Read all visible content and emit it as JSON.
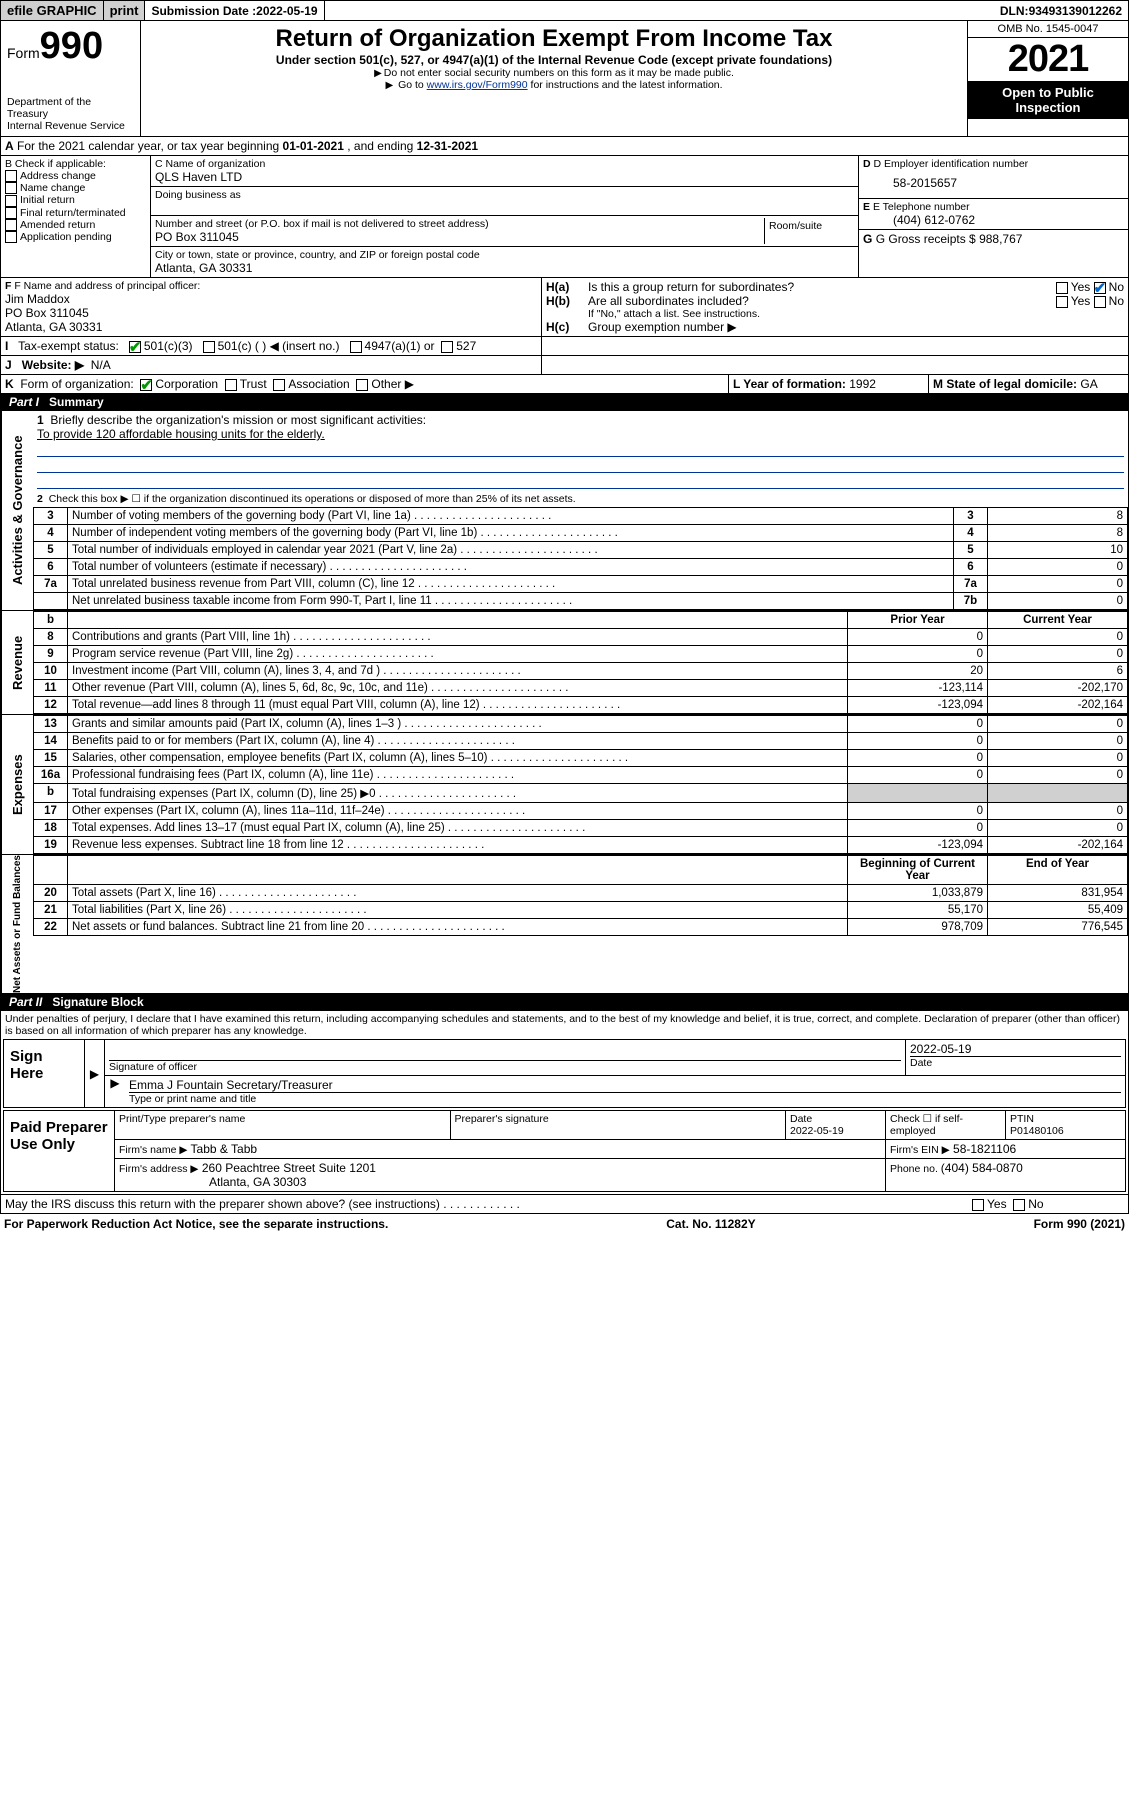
{
  "colors": {
    "link": "#003399",
    "checked": "#0066cc",
    "grey": "#d0d0d0"
  },
  "topbar": {
    "efile": "efile GRAPHIC",
    "print": "print",
    "sub_label": "Submission Date : ",
    "sub_date": "2022-05-19",
    "dln_label": "DLN: ",
    "dln": "93493139012262"
  },
  "header": {
    "form_word": "Form",
    "form_num": "990",
    "dept": "Department of the Treasury",
    "irs": "Internal Revenue Service",
    "title": "Return of Organization Exempt From Income Tax",
    "sub1": "Under section 501(c), 527, or 4947(a)(1) of the Internal Revenue Code (except private foundations)",
    "sub2": "Do not enter social security numbers on this form as it may be made public.",
    "sub3_pre": "Go to ",
    "sub3_link": "www.irs.gov/Form990",
    "sub3_post": " for instructions and the latest information.",
    "omb": "OMB No. 1545-0047",
    "year": "2021",
    "open": "Open to Public Inspection"
  },
  "A": {
    "line": "For the 2021 calendar year, or tax year beginning ",
    "begin": "01-01-2021",
    "mid": " , and ending ",
    "end": "12-31-2021",
    "prefix": "A"
  },
  "B": {
    "label": "B Check if applicable:",
    "opts": [
      "Address change",
      "Name change",
      "Initial return",
      "Final return/terminated",
      "Amended return",
      "Application pending"
    ]
  },
  "C": {
    "name_label": "C Name of organization",
    "name": "QLS Haven LTD",
    "dba_label": "Doing business as",
    "addr_label": "Number and street (or P.O. box if mail is not delivered to street address)",
    "room_label": "Room/suite",
    "addr": "PO Box 311045",
    "city_label": "City or town, state or province, country, and ZIP or foreign postal code",
    "city": "Atlanta, GA  30331"
  },
  "D": {
    "label": "D Employer identification number",
    "val": "58-2015657"
  },
  "E": {
    "label": "E Telephone number",
    "val": "(404) 612-0762"
  },
  "G": {
    "label": "G Gross receipts $ ",
    "val": "988,767"
  },
  "F": {
    "label": "F  Name and address of principal officer:",
    "name": "Jim Maddox",
    "addr1": "PO Box 311045",
    "addr2": "Atlanta, GA  30331"
  },
  "H": {
    "a": "Is this a group return for subordinates?",
    "b": "Are all subordinates included?",
    "note": "If \"No,\" attach a list. See instructions.",
    "c": "Group exemption number ▶",
    "yes": "Yes",
    "no": "No",
    "ha_label": "H(a)",
    "hb_label": "H(b)",
    "hc_label": "H(c)"
  },
  "I": {
    "label": "Tax-exempt status:",
    "prefix": "I",
    "c3": "501(c)(3)",
    "c": "501(c) (  ) ◀ (insert no.)",
    "s4947": "4947(a)(1) or",
    "s527": "527"
  },
  "J": {
    "prefix": "J",
    "label": "Website: ▶",
    "val": "N/A"
  },
  "K": {
    "prefix": "K",
    "label": "Form of organization:",
    "corp": "Corporation",
    "trust": "Trust",
    "assoc": "Association",
    "other": "Other ▶"
  },
  "L": {
    "label": "L Year of formation: ",
    "val": "1992"
  },
  "M": {
    "label": "M State of legal domicile: ",
    "val": "GA"
  },
  "part1": {
    "title": "Part I",
    "sub": "Summary"
  },
  "summary": {
    "q1": "Briefly describe the organization's mission or most significant activities:",
    "mission": "To provide 120 affordable housing units for the elderly.",
    "q2": "Check this box ▶ ☐  if the organization discontinued its operations or disposed of more than 25% of its net assets.",
    "rows_ag": [
      {
        "n": "3",
        "d": "Number of voting members of the governing body (Part VI, line 1a)",
        "rn": "3",
        "v": "8"
      },
      {
        "n": "4",
        "d": "Number of independent voting members of the governing body (Part VI, line 1b)",
        "rn": "4",
        "v": "8"
      },
      {
        "n": "5",
        "d": "Total number of individuals employed in calendar year 2021 (Part V, line 2a)",
        "rn": "5",
        "v": "10"
      },
      {
        "n": "6",
        "d": "Total number of volunteers (estimate if necessary)",
        "rn": "6",
        "v": "0"
      },
      {
        "n": "7a",
        "d": "Total unrelated business revenue from Part VIII, column (C), line 12",
        "rn": "7a",
        "v": "0"
      },
      {
        "n": "",
        "d": "Net unrelated business taxable income from Form 990-T, Part I, line 11",
        "rn": "7b",
        "v": "0"
      }
    ],
    "col_prior": "Prior Year",
    "col_curr": "Current Year",
    "n_b": "b",
    "rev": [
      {
        "n": "8",
        "d": "Contributions and grants (Part VIII, line 1h)",
        "p": "0",
        "c": "0"
      },
      {
        "n": "9",
        "d": "Program service revenue (Part VIII, line 2g)",
        "p": "0",
        "c": "0"
      },
      {
        "n": "10",
        "d": "Investment income (Part VIII, column (A), lines 3, 4, and 7d )",
        "p": "20",
        "c": "6"
      },
      {
        "n": "11",
        "d": "Other revenue (Part VIII, column (A), lines 5, 6d, 8c, 9c, 10c, and 11e)",
        "p": "-123,114",
        "c": "-202,170"
      },
      {
        "n": "12",
        "d": "Total revenue—add lines 8 through 11 (must equal Part VIII, column (A), line 12)",
        "p": "-123,094",
        "c": "-202,164"
      }
    ],
    "exp": [
      {
        "n": "13",
        "d": "Grants and similar amounts paid (Part IX, column (A), lines 1–3 )",
        "p": "0",
        "c": "0"
      },
      {
        "n": "14",
        "d": "Benefits paid to or for members (Part IX, column (A), line 4)",
        "p": "0",
        "c": "0"
      },
      {
        "n": "15",
        "d": "Salaries, other compensation, employee benefits (Part IX, column (A), lines 5–10)",
        "p": "0",
        "c": "0"
      },
      {
        "n": "16a",
        "d": "Professional fundraising fees (Part IX, column (A), line 11e)",
        "p": "0",
        "c": "0"
      },
      {
        "n": "b",
        "d": "Total fundraising expenses (Part IX, column (D), line 25) ▶0",
        "p": "",
        "c": "",
        "grey": true
      },
      {
        "n": "17",
        "d": "Other expenses (Part IX, column (A), lines 11a–11d, 11f–24e)",
        "p": "0",
        "c": "0"
      },
      {
        "n": "18",
        "d": "Total expenses. Add lines 13–17 (must equal Part IX, column (A), line 25)",
        "p": "0",
        "c": "0"
      },
      {
        "n": "19",
        "d": "Revenue less expenses. Subtract line 18 from line 12",
        "p": "-123,094",
        "c": "-202,164"
      }
    ],
    "col_boy": "Beginning of Current Year",
    "col_eoy": "End of Year",
    "net": [
      {
        "n": "20",
        "d": "Total assets (Part X, line 16)",
        "p": "1,033,879",
        "c": "831,954"
      },
      {
        "n": "21",
        "d": "Total liabilities (Part X, line 26)",
        "p": "55,170",
        "c": "55,409"
      },
      {
        "n": "22",
        "d": "Net assets or fund balances. Subtract line 21 from line 20",
        "p": "978,709",
        "c": "776,545"
      }
    ],
    "side_ag": "Activities & Governance",
    "side_rev": "Revenue",
    "side_exp": "Expenses",
    "side_net": "Net Assets or Fund Balances"
  },
  "part2": {
    "title": "Part II",
    "sub": "Signature Block"
  },
  "decl": "Under penalties of perjury, I declare that I have examined this return, including accompanying schedules and statements, and to the best of my knowledge and belief, it is true, correct, and complete. Declaration of preparer (other than officer) is based on all information of which preparer has any knowledge.",
  "sign": {
    "here": "Sign Here",
    "sig_officer": "Signature of officer",
    "date_lbl": "Date",
    "date": "2022-05-19",
    "name": "Emma J Fountain Secretary/Treasurer",
    "type_lbl": "Type or print name and title"
  },
  "paid": {
    "title": "Paid Preparer Use Only",
    "pt_name_lbl": "Print/Type preparer's name",
    "sig_lbl": "Preparer's signature",
    "date_lbl": "Date",
    "date": "2022-05-19",
    "check_lbl": "Check ☐ if self-employed",
    "ptin_lbl": "PTIN",
    "ptin": "P01480106",
    "firm_name_lbl": "Firm's name  ▶",
    "firm_name": "Tabb & Tabb",
    "firm_ein_lbl": "Firm's EIN ▶",
    "firm_ein": "58-1821106",
    "firm_addr_lbl": "Firm's address ▶",
    "firm_addr1": "260 Peachtree Street Suite 1201",
    "firm_addr2": "Atlanta, GA  30303",
    "phone_lbl": "Phone no. ",
    "phone": "(404) 584-0870"
  },
  "discuss": {
    "q": "May the IRS discuss this return with the preparer shown above? (see instructions)",
    "yes": "Yes",
    "no": "No"
  },
  "footer": {
    "pra": "For Paperwork Reduction Act Notice, see the separate instructions.",
    "cat": "Cat. No. 11282Y",
    "form": "Form 990 (2021)"
  }
}
